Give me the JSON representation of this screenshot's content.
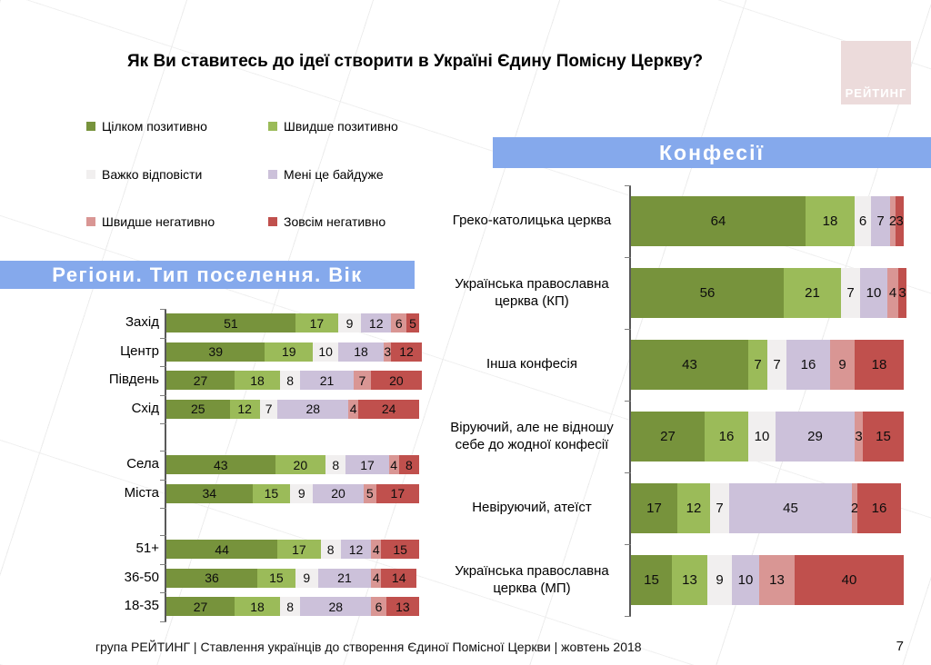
{
  "title": "Як Ви ставитесь до ідеї створити в Україні Єдину Помісну Церкву?",
  "logo": {
    "text": "РЕЙТИНГ",
    "background": "#ECDBDB"
  },
  "accent_color": "#85A9EC",
  "legend": [
    {
      "label": "Цілком позитивно",
      "color": "#77933C"
    },
    {
      "label": "Швидше позитивно",
      "color": "#9BBB59"
    },
    {
      "label": "Важко відповісти",
      "color": "#F1EFEF"
    },
    {
      "label": "Мені це байдуже",
      "color": "#CCC1DA"
    },
    {
      "label": "Швидше негативно",
      "color": "#D99694"
    },
    {
      "label": "Зовсім негативно",
      "color": "#C0504D"
    }
  ],
  "chart_data": [
    {
      "type": "bar",
      "stacked": true,
      "orientation": "horizontal",
      "title": "Регіони. Тип поселення. Вік",
      "xlim": [
        0,
        100
      ],
      "series_labels": [
        "Цілком позитивно",
        "Швидше позитивно",
        "Важко відповісти",
        "Мені це байдуже",
        "Швидше негативно",
        "Зовсім негативно"
      ],
      "colors": [
        "#77933C",
        "#9BBB59",
        "#F1EFEF",
        "#CCC1DA",
        "#D99694",
        "#C0504D"
      ],
      "groups": [
        {
          "categories": [
            "Захід",
            "Центр",
            "Південь",
            "Схід"
          ],
          "rows": [
            [
              51,
              17,
              9,
              12,
              6,
              5
            ],
            [
              39,
              19,
              10,
              18,
              3,
              12
            ],
            [
              27,
              18,
              8,
              21,
              7,
              20
            ],
            [
              25,
              12,
              7,
              28,
              4,
              24
            ]
          ]
        },
        {
          "categories": [
            "Села",
            "Міста"
          ],
          "rows": [
            [
              43,
              20,
              8,
              17,
              4,
              8
            ],
            [
              34,
              15,
              9,
              20,
              5,
              17
            ]
          ]
        },
        {
          "categories": [
            "51+",
            "36-50",
            "18-35"
          ],
          "rows": [
            [
              44,
              17,
              8,
              12,
              4,
              15
            ],
            [
              36,
              15,
              9,
              21,
              4,
              14
            ],
            [
              27,
              18,
              8,
              28,
              6,
              13
            ]
          ]
        }
      ]
    },
    {
      "type": "bar",
      "stacked": true,
      "orientation": "horizontal",
      "title": "Конфесії",
      "xlim": [
        0,
        100
      ],
      "series_labels": [
        "Цілком позитивно",
        "Швидше позитивно",
        "Важко відповісти",
        "Мені це байдуже",
        "Швидше негативно",
        "Зовсім негативно"
      ],
      "colors": [
        "#77933C",
        "#9BBB59",
        "#F1EFEF",
        "#CCC1DA",
        "#D99694",
        "#C0504D"
      ],
      "groups": [
        {
          "categories": [
            "Греко-католицька церква",
            "Українська православна церква (КП)",
            "Інша конфесія",
            "Віруючий, але не відношу себе до жодної конфесії",
            "Невіруючий, атеїст",
            "Українська православна церква (МП)"
          ],
          "rows": [
            [
              64,
              18,
              6,
              7,
              2,
              3
            ],
            [
              56,
              21,
              7,
              10,
              4,
              3
            ],
            [
              43,
              7,
              7,
              16,
              9,
              18
            ],
            [
              27,
              16,
              10,
              29,
              3,
              15
            ],
            [
              17,
              12,
              7,
              45,
              2,
              16
            ],
            [
              15,
              13,
              9,
              10,
              13,
              40
            ]
          ]
        }
      ]
    }
  ],
  "footer": {
    "text": "група РЕЙТИНГ | Ставлення українців до створення Єдиної Помісної Церкви | жовтень 2018",
    "page": "7"
  }
}
